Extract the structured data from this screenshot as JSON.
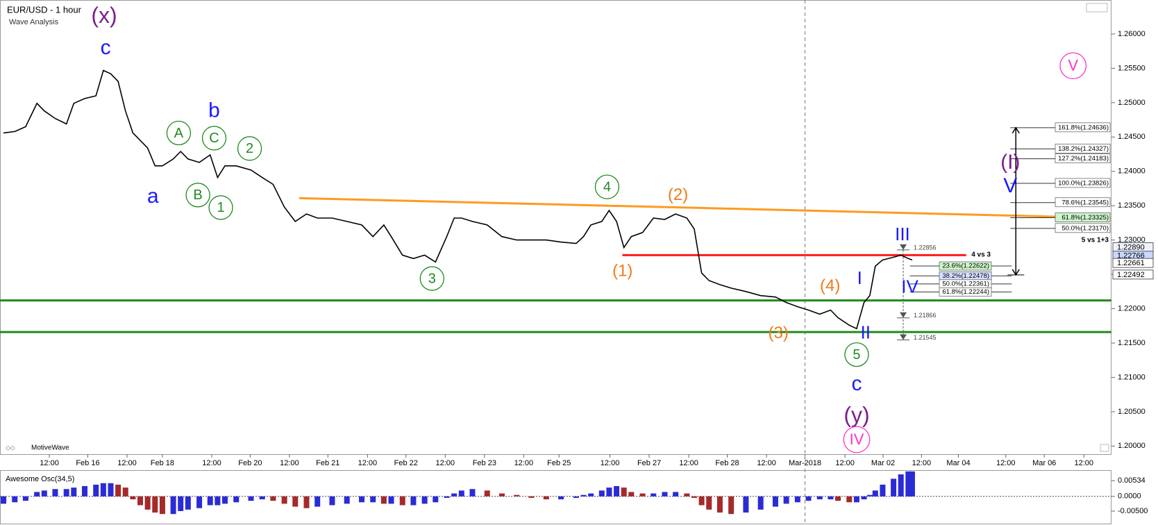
{
  "header": {
    "title": "EUR/USD - 1 hour",
    "subtitle": "Wave Analysis",
    "brand": "MotiveWave"
  },
  "chart_data": [
    {
      "type": "line",
      "color": "#000000",
      "x": [
        -0.18,
        0.11,
        0.39,
        0.68,
        0.87,
        1.15,
        1.44,
        1.63,
        1.91,
        2.2,
        2.39,
        2.58,
        2.77,
        2.96,
        3.15,
        3.34,
        3.53,
        3.72,
        3.91,
        4.19,
        4.38,
        4.57,
        4.86,
        5.14,
        5.33,
        5.52,
        5.81,
        6.19,
        6.48,
        6.76,
        7.05,
        7.33,
        7.62,
        7.9,
        8.28,
        8.66,
        9.04,
        9.33,
        9.61,
        9.8,
        10.09,
        10.37,
        10.66,
        10.94,
        11.23,
        11.42,
        11.61,
        11.89,
        12.27,
        12.65,
        13.03,
        13.41,
        13.79,
        14.17,
        14.56,
        14.75,
        14.94,
        15.22,
        15.41,
        15.6,
        15.79,
        15.98,
        16.27,
        16.55,
        16.84,
        17.12,
        17.41,
        17.6,
        17.79,
        17.98,
        18.26,
        18.55,
        18.93,
        19.31,
        19.69,
        19.97,
        20.26,
        20.54,
        20.83,
        21.11,
        21.3,
        21.59,
        21.78,
        21.97,
        22.12,
        22.26,
        22.45,
        22.73,
        22.92,
        23.11,
        23.21
      ],
      "values": [
        1.2456,
        1.2458,
        1.2465,
        1.2499,
        1.2488,
        1.2477,
        1.2469,
        1.2499,
        1.2506,
        1.251,
        1.2547,
        1.2542,
        1.2531,
        1.2488,
        1.2456,
        1.2445,
        1.2434,
        1.2408,
        1.2408,
        1.2418,
        1.2429,
        1.2418,
        1.2413,
        1.2424,
        1.2391,
        1.2408,
        1.2408,
        1.2402,
        1.2391,
        1.2381,
        1.2348,
        1.2327,
        1.2338,
        1.2332,
        1.2332,
        1.2327,
        1.2322,
        1.2305,
        1.2322,
        1.2305,
        1.2278,
        1.2273,
        1.2278,
        1.2268,
        1.2305,
        1.2332,
        1.2332,
        1.2327,
        1.2322,
        1.2305,
        1.23,
        1.23,
        1.23,
        1.2297,
        1.2295,
        1.2305,
        1.2322,
        1.2327,
        1.2343,
        1.2327,
        1.2289,
        1.2305,
        1.2311,
        1.2332,
        1.233,
        1.2338,
        1.2332,
        1.2316,
        1.2252,
        1.2241,
        1.2235,
        1.223,
        1.2225,
        1.2219,
        1.2217,
        1.2209,
        1.2203,
        1.2198,
        1.2192,
        1.2198,
        1.2187,
        1.2176,
        1.2171,
        1.2209,
        1.2219,
        1.2262,
        1.2271,
        1.2275,
        1.2278,
        1.2273,
        1.2271
      ],
      "xlim": [
        -0.27,
        28.34
      ],
      "ylim": [
        1.19882,
        1.26495
      ],
      "xticks": [
        {
          "value": 1.0,
          "label": "12:00"
        },
        {
          "value": 1.99,
          "label": "Feb 16"
        },
        {
          "value": 3.0,
          "label": "12:00"
        },
        {
          "value": 3.91,
          "label": "Feb 18"
        },
        {
          "value": 5.18,
          "label": "12:00"
        },
        {
          "value": 6.17,
          "label": "Feb 20"
        },
        {
          "value": 7.18,
          "label": "12:00"
        },
        {
          "value": 8.17,
          "label": "Feb 21"
        },
        {
          "value": 9.19,
          "label": "12:00"
        },
        {
          "value": 10.18,
          "label": "Feb 22"
        },
        {
          "value": 11.19,
          "label": "12:00"
        },
        {
          "value": 12.2,
          "label": "Feb 23"
        },
        {
          "value": 13.21,
          "label": "12:00"
        },
        {
          "value": 14.12,
          "label": "Feb 25"
        },
        {
          "value": 15.43,
          "label": "12:00"
        },
        {
          "value": 16.44,
          "label": "Feb 27"
        },
        {
          "value": 17.46,
          "label": "12:00"
        },
        {
          "value": 18.45,
          "label": "Feb 28"
        },
        {
          "value": 19.46,
          "label": "12:00"
        },
        {
          "value": 20.45,
          "label": "Mar-2018"
        },
        {
          "value": 21.48,
          "label": "12:00"
        },
        {
          "value": 22.46,
          "label": "Mar 02"
        },
        {
          "value": 23.45,
          "label": "12:00"
        },
        {
          "value": 24.4,
          "label": "Mar 04"
        },
        {
          "value": 25.62,
          "label": "12:00"
        },
        {
          "value": 26.61,
          "label": "Mar 06"
        },
        {
          "value": 27.63,
          "label": "12:00"
        }
      ],
      "yticks": [
        {
          "value": 1.2,
          "label": "1.20000"
        },
        {
          "value": 1.205,
          "label": "1.20500"
        },
        {
          "value": 1.21,
          "label": "1.21000"
        },
        {
          "value": 1.215,
          "label": "1.21500"
        },
        {
          "value": 1.22,
          "label": "1.22000"
        },
        {
          "value": 1.225,
          "label": "1.22500"
        },
        {
          "value": 1.23,
          "label": "1.23000"
        },
        {
          "value": 1.235,
          "label": "1.23500"
        },
        {
          "value": 1.24,
          "label": "1.24000"
        },
        {
          "value": 1.245,
          "label": "1.24500"
        },
        {
          "value": 1.25,
          "label": "1.25000"
        },
        {
          "value": 1.255,
          "label": "1.25500"
        },
        {
          "value": 1.26,
          "label": "1.26000"
        }
      ],
      "divider_x": 20.45,
      "lines": [
        {
          "x": [
            -0.27,
            28.34
          ],
          "y": [
            1.2212,
            1.2212
          ],
          "color": "#1f8a1f"
        },
        {
          "x": [
            -0.27,
            28.34
          ],
          "y": [
            1.2166,
            1.2166
          ],
          "color": "#1f8a1f"
        },
        {
          "x": [
            7.43,
            28.34
          ],
          "y": [
            1.2361,
            1.2332
          ],
          "color": "#ff9a1f"
        },
        {
          "x": [
            15.75,
            24.6
          ],
          "y": [
            1.2278,
            1.2278
          ],
          "color": "#ff1a1a"
        }
      ],
      "annotations": [
        {
          "text": "(x)",
          "color": "#7b1f8c"
        },
        {
          "text": "c",
          "color": "#1a1aff"
        },
        {
          "text": "b",
          "color": "#1a1aff"
        },
        {
          "text": "a",
          "color": "#1a1aff"
        },
        {
          "text": "A",
          "color": "#1f8a1f"
        },
        {
          "text": "B",
          "color": "#1f8a1f"
        },
        {
          "text": "C",
          "color": "#1f8a1f"
        },
        {
          "text": "1",
          "color": "#1f8a1f"
        },
        {
          "text": "2",
          "color": "#1f8a1f"
        },
        {
          "text": "3",
          "color": "#1f8a1f"
        },
        {
          "text": "4",
          "color": "#1f8a1f"
        },
        {
          "text": "5",
          "color": "#1f8a1f"
        },
        {
          "text": "(2)",
          "color": "#f07b1a"
        },
        {
          "text": "(1)",
          "color": "#f07b1a"
        },
        {
          "text": "(4)",
          "color": "#f07b1a"
        },
        {
          "text": "(3)",
          "color": "#f07b1a"
        },
        {
          "text": "I",
          "color": "#1a1aff"
        },
        {
          "text": "II",
          "color": "#1a1aff"
        },
        {
          "text": "III",
          "color": "#1a1aff"
        },
        {
          "text": "IV",
          "color": "#1a1aff"
        },
        {
          "text": "c",
          "color": "#1a1aff"
        },
        {
          "text": "(y)",
          "color": "#7b1f8c"
        },
        {
          "text": "IV",
          "color": "#ff33cc"
        },
        {
          "text": "V",
          "color": "#ff33cc"
        },
        {
          "text": "(I)",
          "color": "#7b1f8c"
        },
        {
          "text": "V",
          "color": "#1a1aff"
        }
      ],
      "fib_extension": [
        {
          "value": 1.24636,
          "label": "161.8%(1.24636)",
          "box_color": "#ffffff"
        },
        {
          "value": 1.24327,
          "label": "138.2%(1.24327)",
          "box_color": "#ffffff"
        },
        {
          "value": 1.24183,
          "label": "127.2%(1.24183)",
          "box_color": "#ffffff"
        },
        {
          "value": 1.23826,
          "label": "100.0%(1.23826)",
          "box_color": "#ffffff"
        },
        {
          "value": 1.23545,
          "label": "78.6%(1.23545)",
          "box_color": "#ffffff"
        },
        {
          "value": 1.23325,
          "label": "61.8%(1.23325)",
          "box_color": "#ccf5cc"
        },
        {
          "value": 1.2317,
          "label": "50.0%(1.23170)",
          "box_color": "#ffffff"
        }
      ],
      "fib_extension_note": "5 vs 1+3",
      "fib_retracement": [
        {
          "value": 1.22622,
          "label": "23.6%(1.22622)",
          "box_color": "#ccf5cc"
        },
        {
          "value": 1.22478,
          "label": "38.2%(1.22478)",
          "box_color": "#d6e0ff"
        },
        {
          "value": 1.22361,
          "label": "50.0%(1.22361)",
          "box_color": "#ffffff"
        },
        {
          "value": 1.22244,
          "label": "61.8%(1.22244)",
          "box_color": "#ffffff"
        }
      ],
      "fib_retracement_note": "4 vs 3",
      "price_notes": [
        {
          "value": 1.22856,
          "label": "1.22856"
        },
        {
          "value": 1.21866,
          "label": "1.21866"
        },
        {
          "value": 1.21545,
          "label": "1.21545"
        }
      ],
      "price_tags": [
        {
          "value": 1.2289,
          "label": "1.22890",
          "box_color": "#eef2ff"
        },
        {
          "value": 1.22766,
          "label": "1.22766",
          "box_color": "#c8d8ff"
        },
        {
          "value": 1.22661,
          "label": "1.22661",
          "box_color": "#ffffff"
        },
        {
          "value": 1.22492,
          "label": "1.22492",
          "box_color": "#ffffff"
        }
      ]
    },
    {
      "type": "bar",
      "title": "Awesome Osc(34,5)",
      "colors": {
        "up": "#2b2bd6",
        "down": "#a52a2a"
      },
      "x": [
        -0.18,
        0.11,
        0.39,
        0.68,
        0.87,
        1.15,
        1.44,
        1.63,
        1.91,
        2.2,
        2.39,
        2.58,
        2.77,
        2.96,
        3.15,
        3.34,
        3.53,
        3.72,
        3.91,
        4.19,
        4.38,
        4.57,
        4.86,
        5.14,
        5.33,
        5.52,
        5.81,
        6.19,
        6.48,
        6.76,
        7.05,
        7.33,
        7.62,
        7.9,
        8.28,
        8.66,
        9.04,
        9.33,
        9.61,
        9.8,
        10.09,
        10.37,
        10.66,
        10.94,
        11.23,
        11.42,
        11.61,
        11.89,
        12.27,
        12.65,
        13.03,
        13.41,
        13.79,
        14.17,
        14.56,
        14.75,
        14.94,
        15.22,
        15.41,
        15.6,
        15.79,
        15.98,
        16.27,
        16.55,
        16.84,
        17.12,
        17.41,
        17.6,
        17.79,
        17.98,
        18.26,
        18.55,
        18.93,
        19.31,
        19.69,
        19.97,
        20.26,
        20.54,
        20.83,
        21.11,
        21.3,
        21.59,
        21.78,
        21.97,
        22.12,
        22.26,
        22.45,
        22.73,
        22.92,
        23.11,
        23.21
      ],
      "values": [
        -0.0025,
        -0.002,
        -0.0015,
        0.0015,
        0.002,
        0.0025,
        0.0025,
        0.003,
        0.0035,
        0.004,
        0.0045,
        0.0045,
        0.004,
        0.003,
        -0.001,
        -0.003,
        -0.0045,
        -0.0055,
        -0.006,
        -0.006,
        -0.005,
        -0.0045,
        -0.004,
        -0.003,
        -0.003,
        -0.0025,
        -0.002,
        -0.0015,
        -0.001,
        -0.0015,
        -0.0025,
        -0.0035,
        -0.004,
        -0.0035,
        -0.003,
        -0.0025,
        -0.002,
        -0.002,
        -0.0025,
        -0.0025,
        -0.003,
        -0.003,
        -0.0025,
        -0.002,
        -0.0005,
        0.001,
        0.002,
        0.0025,
        0.002,
        0.001,
        0.0005,
        -0.0005,
        -0.001,
        -0.001,
        -0.0005,
        0.0005,
        0.001,
        0.002,
        0.003,
        0.0035,
        0.003,
        0.0015,
        0.001,
        0.001,
        0.0015,
        0.0015,
        0.001,
        -0.0005,
        -0.003,
        -0.0045,
        -0.0055,
        -0.006,
        -0.0055,
        -0.0045,
        -0.0035,
        -0.0025,
        -0.002,
        -0.0015,
        -0.001,
        -0.001,
        -0.0015,
        -0.002,
        -0.002,
        -0.001,
        0.0005,
        0.002,
        0.004,
        0.006,
        0.0075,
        0.0085,
        0.0085
      ],
      "xlim": [
        -0.27,
        28.34
      ],
      "ylim": [
        -0.0095,
        0.0087
      ],
      "yticks": [
        {
          "value": 0.00534,
          "label": "0.00534"
        },
        {
          "value": 0,
          "label": "0.0000"
        },
        {
          "value": -0.005,
          "label": "-0.00500"
        }
      ]
    }
  ]
}
